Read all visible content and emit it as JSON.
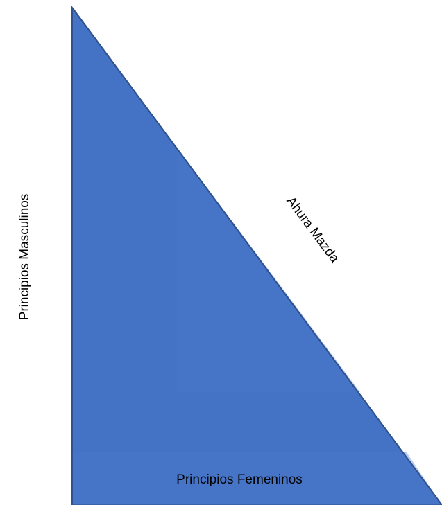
{
  "labels": {
    "masculine": "Principios Masculinos",
    "hypotenuse": "Ahura Mazda",
    "feminine": "Principios Femeninos"
  },
  "colors": {
    "triangle_fill": "#4472C4",
    "triangle_stroke": "#2F528F",
    "inner_shade": "#4B7AD0",
    "text": "#000000",
    "background": "#FFFFFF"
  }
}
